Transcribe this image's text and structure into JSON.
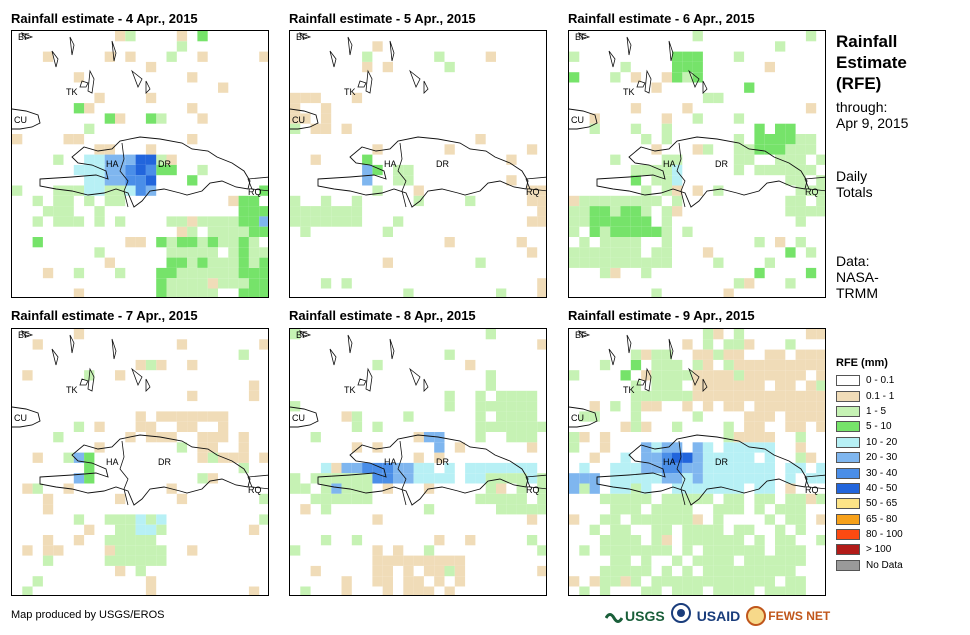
{
  "panels": [
    {
      "title": "Rainfall estimate - 4 Apr., 2015",
      "day": 4
    },
    {
      "title": "Rainfall estimate - 5 Apr., 2015",
      "day": 5
    },
    {
      "title": "Rainfall estimate - 6 Apr., 2015",
      "day": 6
    },
    {
      "title": "Rainfall estimate - 7 Apr., 2015",
      "day": 7
    },
    {
      "title": "Rainfall estimate - 8 Apr., 2015",
      "day": 8
    },
    {
      "title": "Rainfall estimate - 9 Apr., 2015",
      "day": 9
    }
  ],
  "map_labels": {
    "bf": "BF",
    "tk": "TK",
    "cu": "CU",
    "ha": "HA",
    "dr": "DR",
    "rq": "RQ"
  },
  "side": {
    "title_line1": "Rainfall",
    "title_line2": "Estimate",
    "title_line3": "(RFE)",
    "through": "through:",
    "date": "Apr 9, 2015",
    "daily1": "Daily",
    "daily2": "Totals",
    "data1": "Data:",
    "data2": "NASA-",
    "data3": "TRMM"
  },
  "legend": {
    "title": "RFE (mm)",
    "items": [
      {
        "label": "0 - 0.1",
        "color": "#ffffff"
      },
      {
        "label": "0.1 - 1",
        "color": "#f0dcb8"
      },
      {
        "label": "1 - 5",
        "color": "#c6f2b4"
      },
      {
        "label": "5 - 10",
        "color": "#76e36a"
      },
      {
        "label": "10 - 20",
        "color": "#b7f0f5"
      },
      {
        "label": "20 - 30",
        "color": "#7fb6ef"
      },
      {
        "label": "30 - 40",
        "color": "#4a8ee8"
      },
      {
        "label": "40 - 50",
        "color": "#2265dc"
      },
      {
        "label": "50 - 65",
        "color": "#fde487"
      },
      {
        "label": "65 - 80",
        "color": "#f7a11a"
      },
      {
        "label": "80 - 100",
        "color": "#fb4a12"
      },
      {
        "label": "> 100",
        "color": "#b21b18"
      },
      {
        "label": "No Data",
        "color": "#9a9a9a"
      }
    ]
  },
  "credit": "Map produced by USGS/EROS",
  "logos": {
    "usgs": "USGS",
    "usaid": "USAID",
    "fews": "FEWS NET"
  }
}
